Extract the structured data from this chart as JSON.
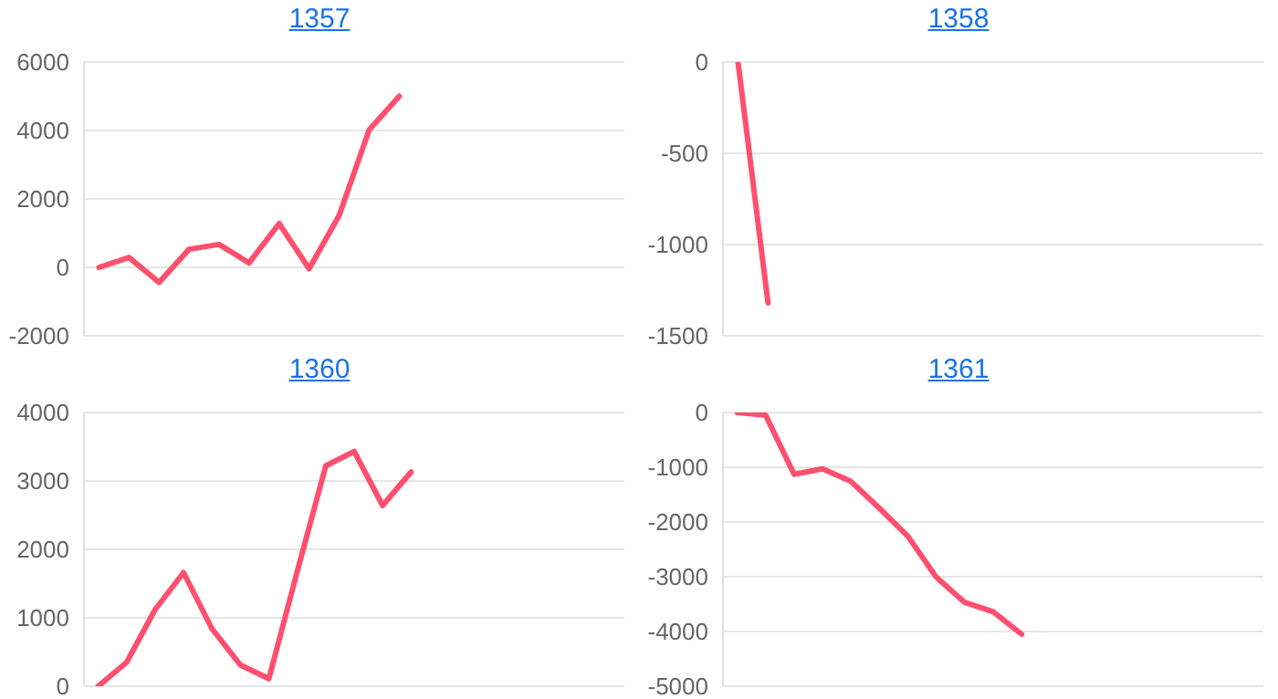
{
  "chart_data": [
    {
      "type": "line",
      "title": "1357",
      "categories": [
        null,
        null,
        null,
        null,
        null,
        null,
        null,
        null,
        null,
        null,
        null,
        null,
        null,
        null,
        null,
        null,
        null,
        null
      ],
      "series": [
        {
          "color": "#ff4f6e",
          "values": [
            0,
            290,
            -440,
            530,
            670,
            130,
            1280,
            -40,
            1520,
            4020,
            5000,
            null,
            null,
            null,
            null,
            null,
            null,
            null
          ]
        }
      ],
      "ylim": [
        -2000,
        6000
      ],
      "yticks": [
        -2000,
        0,
        2000,
        4000,
        6000
      ],
      "grid": "y",
      "tick_labels": "y",
      "legend": false,
      "marker": "none",
      "line_style": "solid"
    },
    {
      "type": "line",
      "title": "1358",
      "categories": [
        null,
        null,
        null,
        null,
        null,
        null,
        null,
        null,
        null,
        null,
        null,
        null,
        null,
        null,
        null,
        null,
        null,
        null
      ],
      "series": [
        {
          "color": "#ff4f6e",
          "values": [
            0,
            -1320,
            null,
            null,
            null,
            null,
            null,
            null,
            null,
            null,
            null,
            null,
            null,
            null,
            null,
            null,
            null,
            null
          ]
        }
      ],
      "ylim": [
        -1500,
        0
      ],
      "yticks": [
        -1500,
        -1000,
        -500,
        0
      ],
      "grid": "y",
      "tick_labels": "y",
      "legend": false,
      "marker": "none",
      "line_style": "solid"
    },
    {
      "type": "line",
      "title": "1360",
      "categories": [
        null,
        null,
        null,
        null,
        null,
        null,
        null,
        null,
        null,
        null,
        null,
        null,
        null,
        null,
        null,
        null,
        null,
        null,
        null
      ],
      "series": [
        {
          "color": "#ff4f6e",
          "values": [
            0,
            350,
            1120,
            1660,
            840,
            310,
            110,
            1680,
            3220,
            3430,
            2640,
            3130,
            null,
            null,
            null,
            null,
            null,
            null,
            null
          ]
        }
      ],
      "ylim": [
        0,
        4000
      ],
      "yticks": [
        0,
        1000,
        2000,
        3000,
        4000
      ],
      "grid": "y",
      "tick_labels": "y",
      "legend": false,
      "marker": "none",
      "line_style": "solid"
    },
    {
      "type": "line",
      "title": "1361",
      "categories": [
        null,
        null,
        null,
        null,
        null,
        null,
        null,
        null,
        null,
        null,
        null,
        null,
        null,
        null,
        null,
        null,
        null,
        null,
        null
      ],
      "series": [
        {
          "color": "#ff4f6e",
          "values": [
            0,
            -50,
            -1130,
            -1030,
            -1260,
            -1750,
            -2260,
            -3010,
            -3470,
            -3640,
            -4050,
            null,
            null,
            null,
            null,
            null,
            null,
            null,
            null
          ]
        }
      ],
      "ylim": [
        -5000,
        0
      ],
      "yticks": [
        -5000,
        -4000,
        -3000,
        -2000,
        -1000,
        0
      ],
      "grid": "y",
      "tick_labels": "y",
      "legend": false,
      "marker": "none",
      "line_style": "solid"
    }
  ]
}
